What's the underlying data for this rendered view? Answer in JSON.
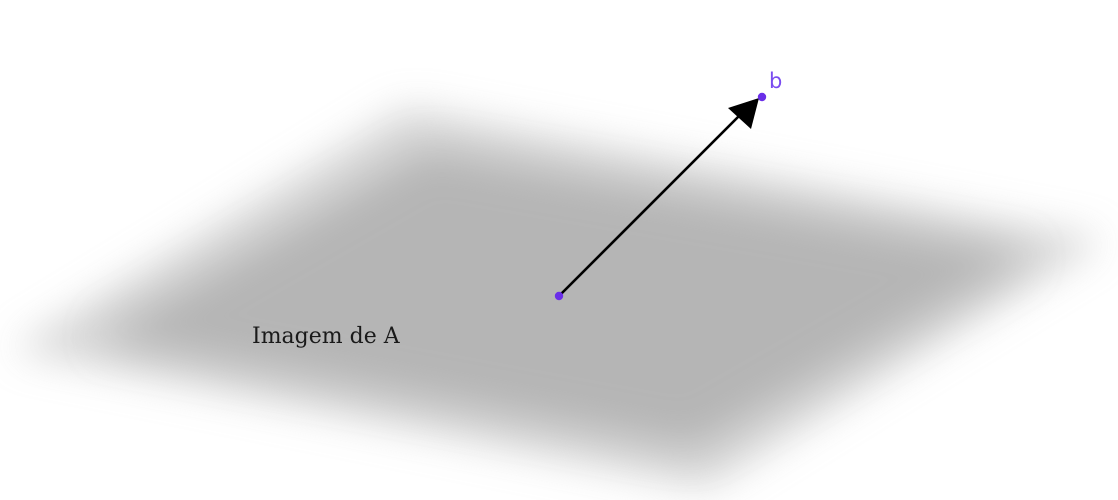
{
  "plane": {
    "label": "Imagem de A",
    "color": "#b5b5b5"
  },
  "vector": {
    "end_label": "b",
    "point_color": "#6a2ee8",
    "label_color": "#7a4cf0",
    "arrow_color": "#000000"
  }
}
